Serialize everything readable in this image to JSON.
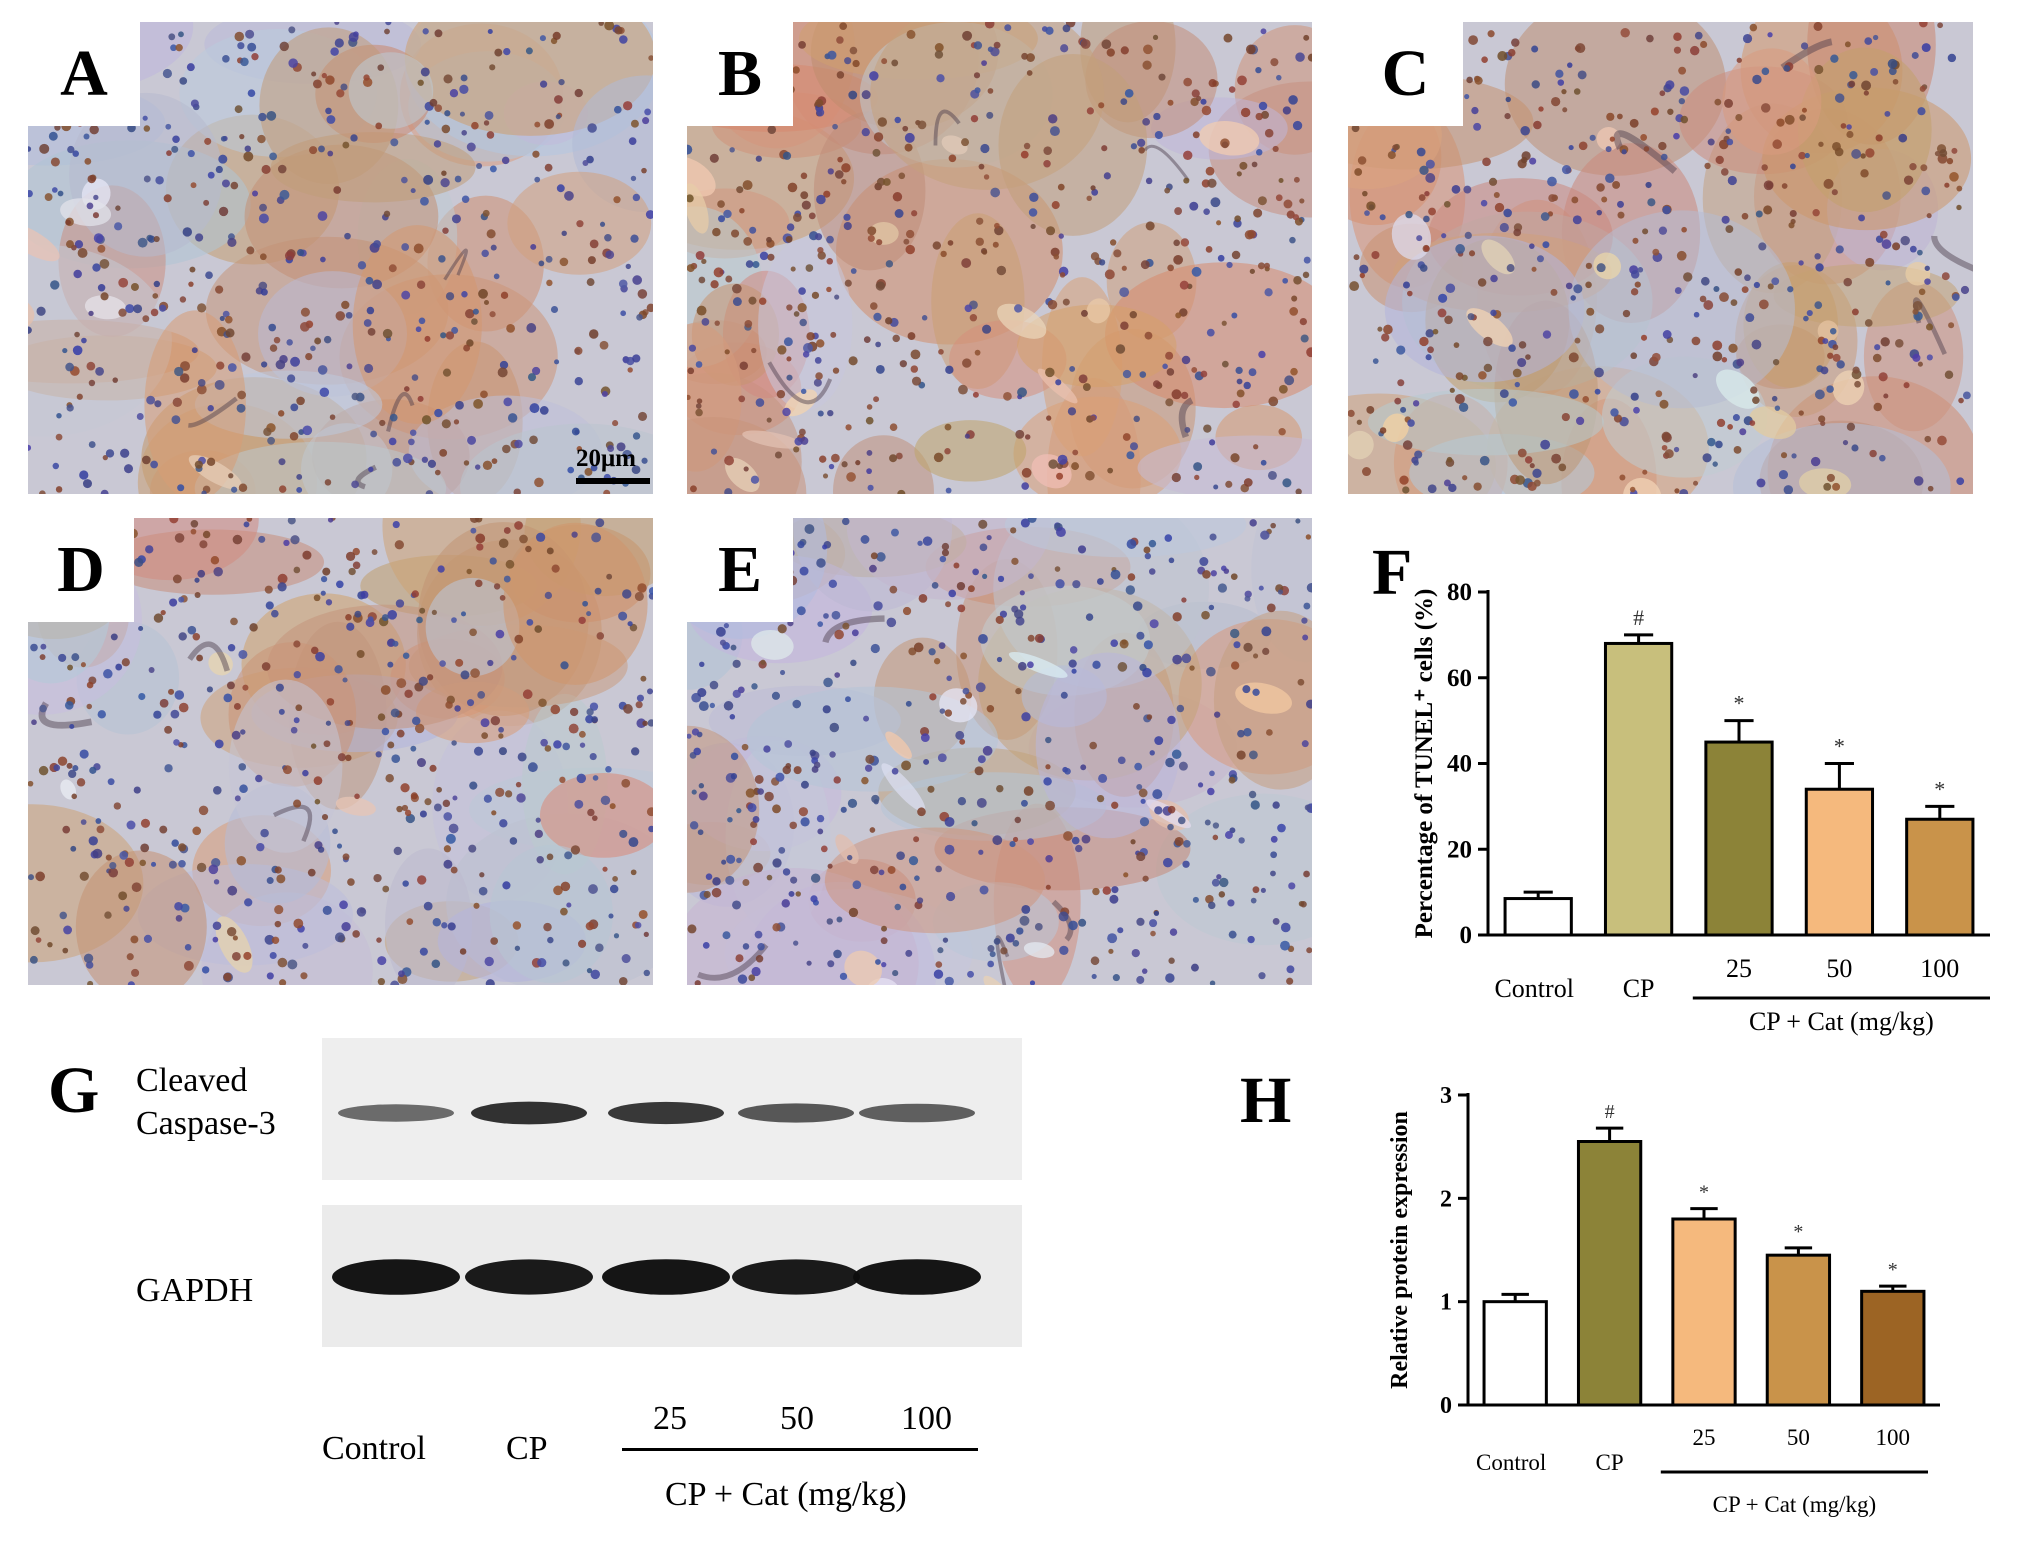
{
  "panels": {
    "A": {
      "letter": "A",
      "scale": "20μm"
    },
    "B": {
      "letter": "B"
    },
    "C": {
      "letter": "C"
    },
    "D": {
      "letter": "D"
    },
    "E": {
      "letter": "E"
    }
  },
  "panel_letters": {
    "F": "F",
    "G": "G",
    "H": "H"
  },
  "blot": {
    "band1_label_line1": "Cleaved",
    "band1_label_line2": "Caspase-3",
    "band2_label": "GAPDH",
    "lanes": [
      "Control",
      "CP",
      "25",
      "50",
      "100"
    ],
    "group_label": "CP + Cat (mg/kg)",
    "band1_intensity": [
      0.45,
      0.9,
      0.85,
      0.6,
      0.55
    ],
    "band2_intensity": [
      0.95,
      0.9,
      0.95,
      0.9,
      0.95
    ]
  },
  "chart_data": [
    {
      "id": "F",
      "type": "bar",
      "categories": [
        "Control",
        "CP",
        "25",
        "50",
        "100"
      ],
      "values": [
        8.5,
        68,
        45,
        34,
        27
      ],
      "errors": [
        1.5,
        2,
        5,
        6,
        3
      ],
      "significance": [
        "",
        "#",
        "*",
        "*",
        "*"
      ],
      "colors": [
        "#ffffff",
        "#c8bf7c",
        "#8c8338",
        "#f5b97d",
        "#c9934a"
      ],
      "ylabel": "Percentage of TUNEL⁺ cells (%)",
      "ylim": [
        0,
        80
      ],
      "yticks": [
        "0",
        "20",
        "40",
        "60",
        "80"
      ],
      "group_label": "CP + Cat (mg/kg)",
      "grid": false
    },
    {
      "id": "H",
      "type": "bar",
      "categories": [
        "Control",
        "CP",
        "25",
        "50",
        "100"
      ],
      "values": [
        1.0,
        2.55,
        1.8,
        1.45,
        1.1
      ],
      "errors": [
        0.07,
        0.13,
        0.1,
        0.07,
        0.05
      ],
      "significance": [
        "",
        "#",
        "*",
        "*",
        "*"
      ],
      "colors": [
        "#ffffff",
        "#8c8338",
        "#f5b97d",
        "#c9934a",
        "#9c6424"
      ],
      "ylabel": "Relative protein expression",
      "ylim": [
        0,
        3
      ],
      "yticks": [
        "0",
        "1",
        "2",
        "3"
      ],
      "group_label": "CP + Cat (mg/kg)",
      "grid": false
    }
  ]
}
